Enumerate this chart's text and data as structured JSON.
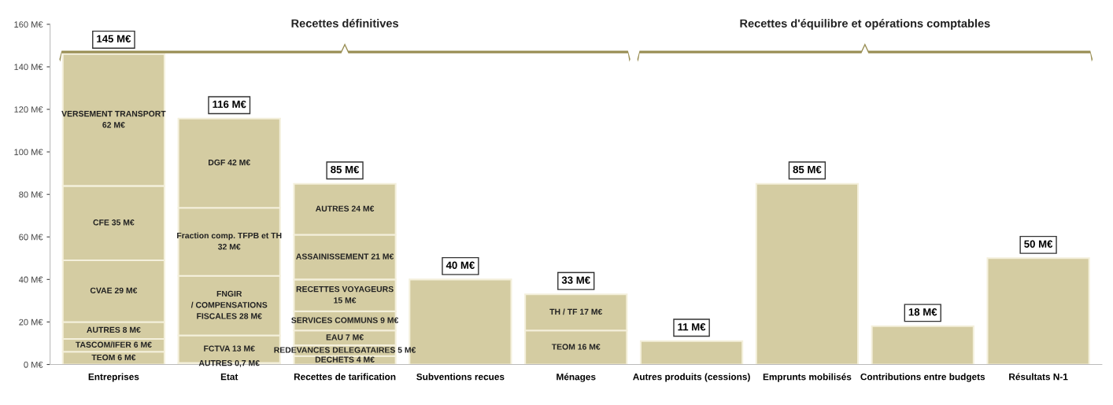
{
  "chart_data": {
    "type": "bar",
    "stacked": true,
    "categories": [
      "Entreprises",
      "Etat",
      "Recettes de tarification",
      "Subventions recues",
      "Ménages",
      "Autres produits (cessions)",
      "Emprunts mobilisés",
      "Contributions entre budgets",
      "Résultats N-1"
    ],
    "series": [
      {
        "color": "#d4cca2",
        "values": [
          6,
          0.7,
          4,
          40,
          16,
          11,
          85,
          18,
          50
        ],
        "value_labels": [
          "TEOM 6 M€",
          "AUTRES 0,7 M€",
          "DECHETS 4 M€",
          null,
          "TEOM 16 M€",
          null,
          null,
          null,
          null
        ]
      },
      {
        "color": "#d4cca2",
        "values": [
          6,
          13,
          5,
          null,
          17,
          null,
          null,
          null,
          null
        ],
        "value_labels": [
          "TASCOM/IFER 6 M€",
          "FCTVA 13 M€",
          "REDEVANCES DELEGATAIRES 5 M€",
          null,
          "TH / TF 17 M€",
          null,
          null,
          null,
          null
        ]
      },
      {
        "color": "#d4cca2",
        "values": [
          8,
          28,
          7,
          null,
          null,
          null,
          null,
          null,
          null
        ],
        "value_labels": [
          "AUTRES 8 M€",
          "FNGIR\n/ COMPENSATIONS\nFISCALES 28 M€",
          "EAU 7 M€",
          null,
          null,
          null,
          null,
          null,
          null
        ]
      },
      {
        "color": "#d4cca2",
        "values": [
          29,
          32,
          9,
          null,
          null,
          null,
          null,
          null,
          null
        ],
        "value_labels": [
          "CVAE 29 M€",
          "Fraction comp. TFPB et TH\n32 M€",
          "SERVICES COMMUNS 9 M€",
          null,
          null,
          null,
          null,
          null,
          null
        ]
      },
      {
        "color": "#d4cca2",
        "values": [
          35,
          42,
          15,
          null,
          null,
          null,
          null,
          null,
          null
        ],
        "value_labels": [
          "CFE 35 M€",
          "DGF 42 M€",
          "RECETTES VOYAGEURS\n15 M€",
          null,
          null,
          null,
          null,
          null,
          null
        ]
      },
      {
        "color": "#d4cca2",
        "values": [
          62,
          null,
          21,
          null,
          null,
          null,
          null,
          null,
          null
        ],
        "value_labels": [
          "VERSEMENT TRANSPORT\n62 M€",
          null,
          "ASSAINISSEMENT 21 M€",
          null,
          null,
          null,
          null,
          null,
          null
        ]
      },
      {
        "color": "#d4cca2",
        "values": [
          null,
          null,
          24,
          null,
          null,
          null,
          null,
          null,
          null
        ],
        "value_labels": [
          null,
          null,
          "AUTRES 24 M€",
          null,
          null,
          null,
          null,
          null,
          null
        ]
      }
    ],
    "totals": [
      "145 M€",
      "116 M€",
      "85 M€",
      "40 M€",
      "33 M€",
      "11 M€",
      "85 M€",
      "18 M€",
      "50 M€"
    ],
    "ylim": [
      0,
      160
    ],
    "yticks": [
      {
        "value": 0,
        "label": "0 M€"
      },
      {
        "value": 20,
        "label": "20 M€"
      },
      {
        "value": 40,
        "label": "40 M€"
      },
      {
        "value": 60,
        "label": "60 M€"
      },
      {
        "value": 80,
        "label": "80 M€"
      },
      {
        "value": 100,
        "label": "100 M€"
      },
      {
        "value": 120,
        "label": "120 M€"
      },
      {
        "value": 140,
        "label": "140 M€"
      },
      {
        "value": 160,
        "label": "160 M€"
      }
    ],
    "annotations": [
      "Recettes définitives",
      "Recettes d'équilibre et opérations comptables"
    ]
  }
}
